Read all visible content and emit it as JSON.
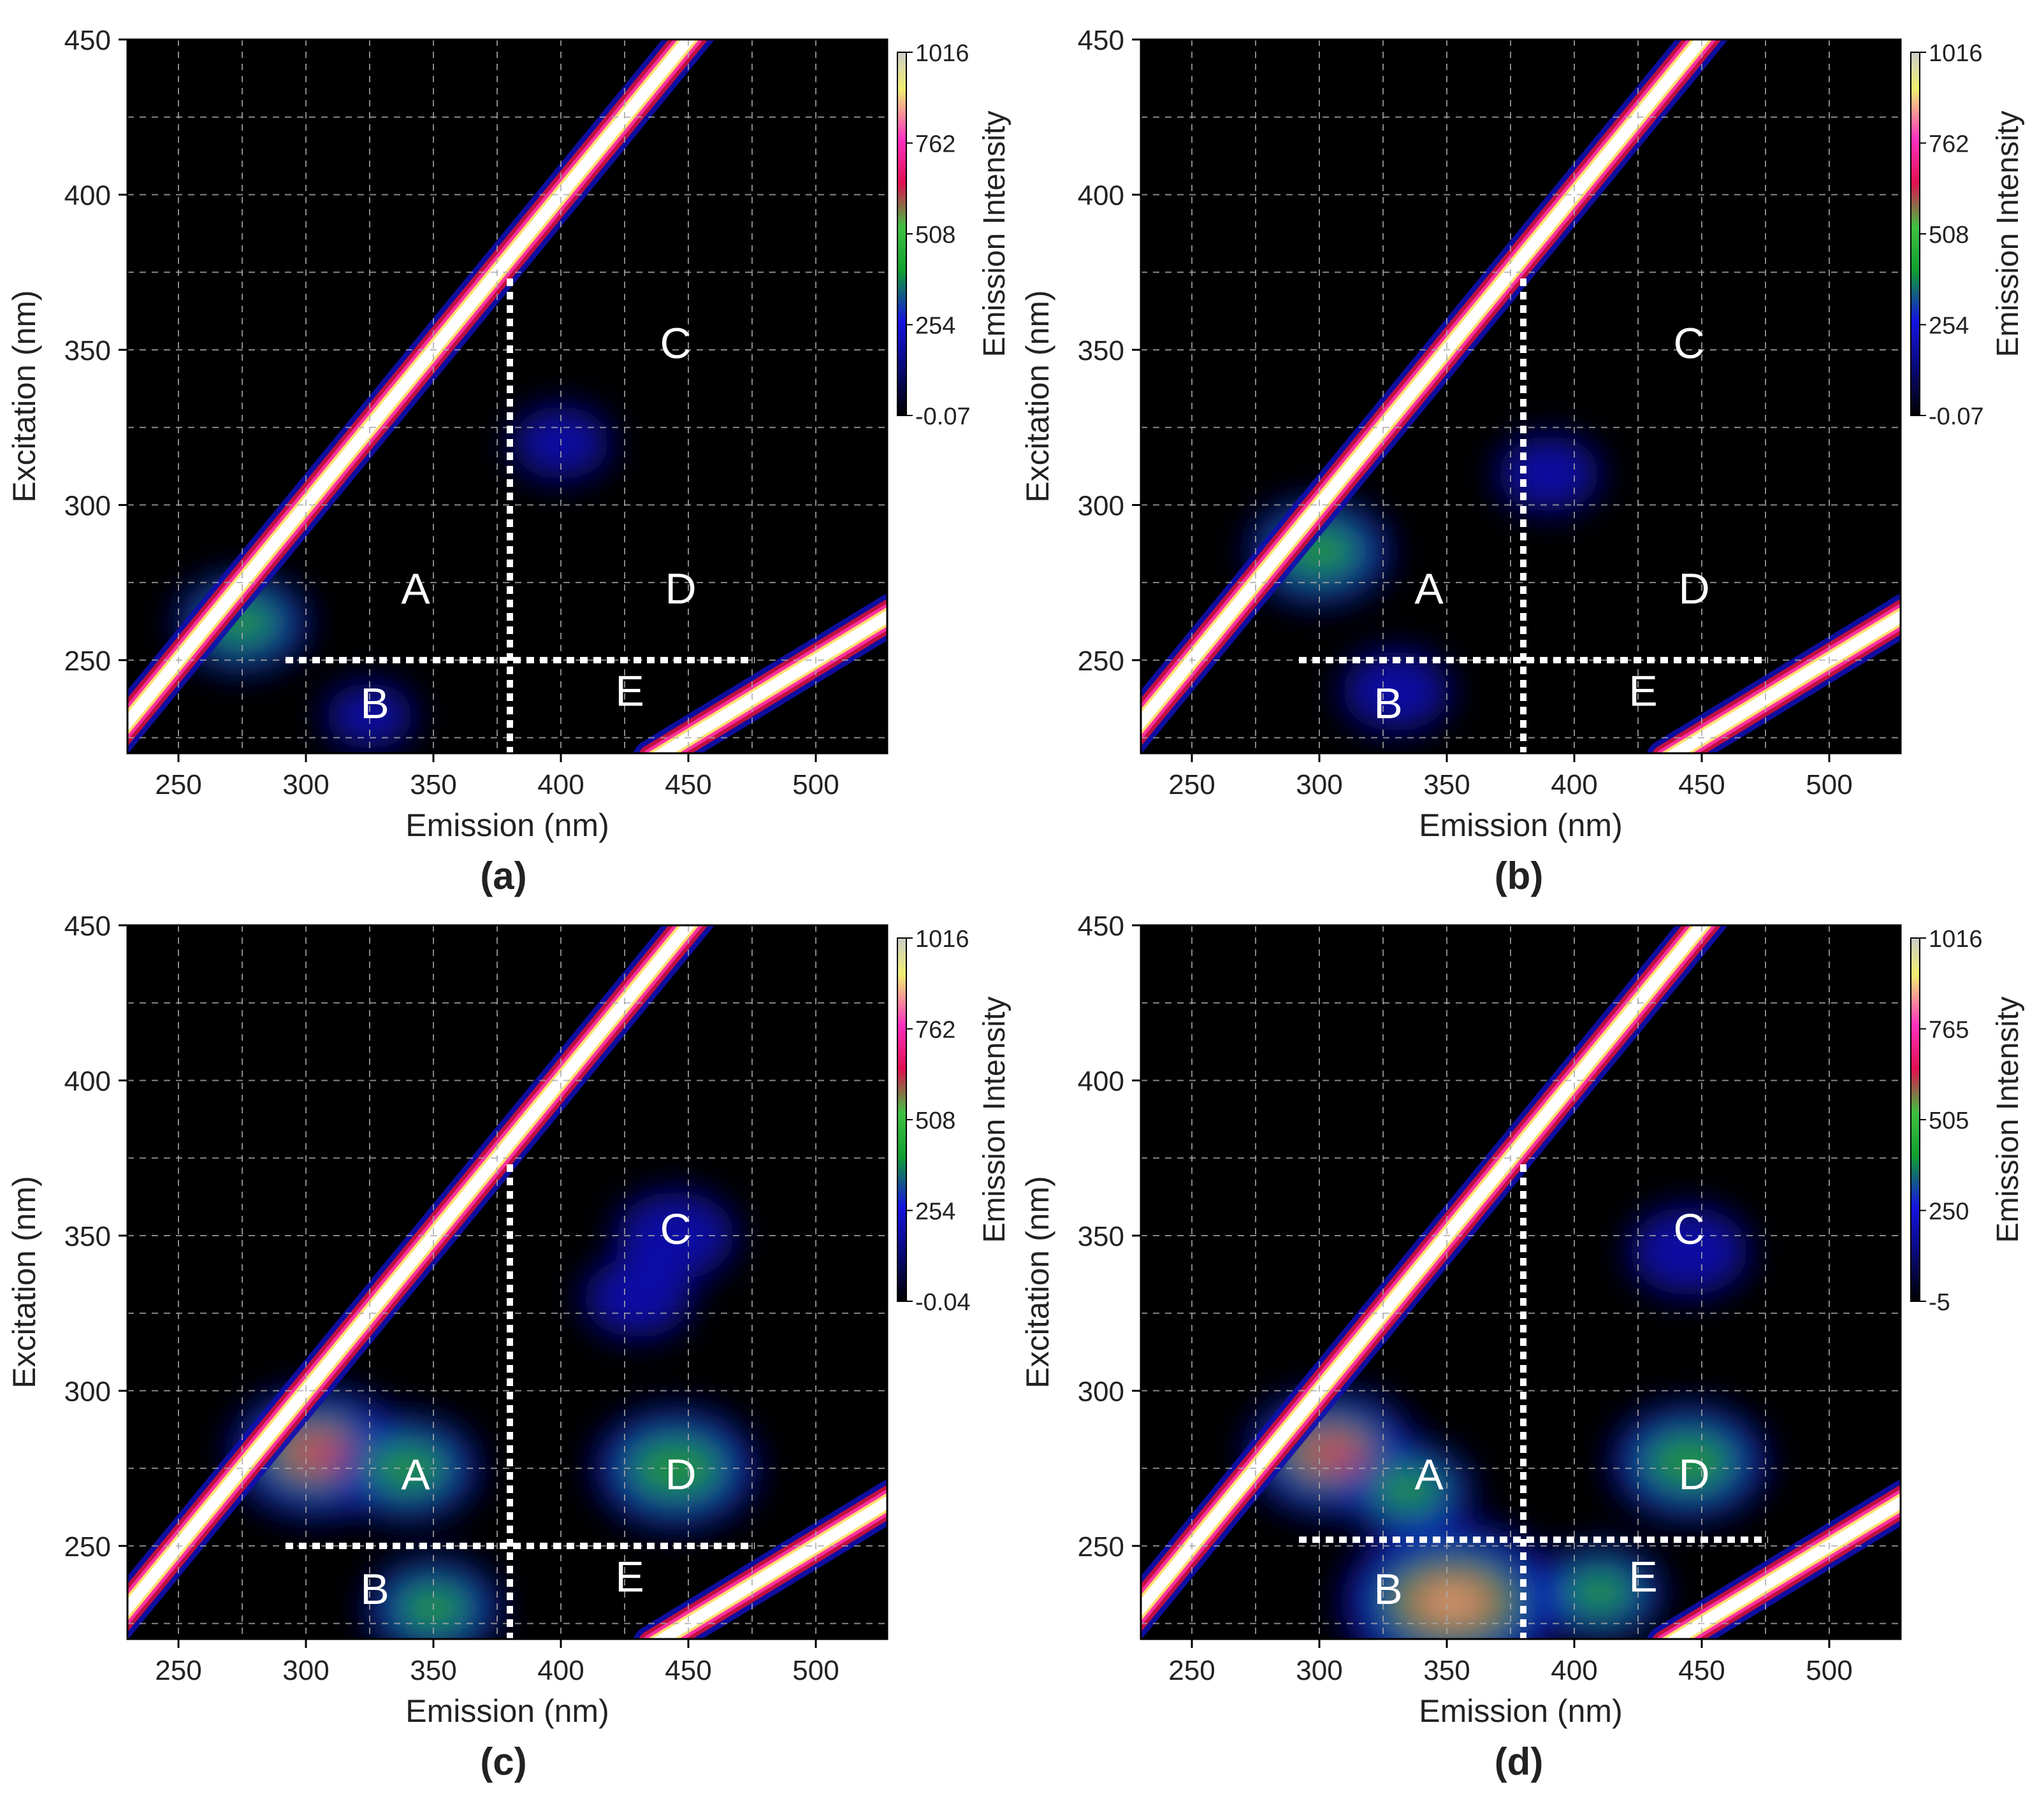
{
  "figure": {
    "type": "eem-contour-panels",
    "colors": {
      "background": "#ffffff",
      "plot_bg": "#000000",
      "grid": "#aaaaaa",
      "label_text": "#222222",
      "region_text": "#ffffff",
      "divider": "#ffffff",
      "colormap": [
        "#0a0a3a",
        "#1414d2",
        "#10a030",
        "#3ac03a",
        "#e01060",
        "#ff30b0",
        "#f0ff60",
        "#ffffff"
      ]
    }
  },
  "chart_data": [
    {
      "id": "a",
      "type": "heatmap",
      "caption": "(a)",
      "xlabel": "Emission (nm)",
      "ylabel": "Excitation (nm)",
      "xlim": [
        230,
        528
      ],
      "ylim": [
        220,
        450
      ],
      "xticks": [
        250,
        300,
        350,
        400,
        450,
        500
      ],
      "yticks": [
        250,
        300,
        350,
        400,
        450
      ],
      "xgrid": [
        250,
        275,
        300,
        325,
        350,
        375,
        400,
        425,
        450,
        475,
        500
      ],
      "ygrid": [
        225,
        250,
        275,
        300,
        325,
        350,
        375,
        400,
        425,
        450
      ],
      "colorbar": {
        "label": "Emission Intensity",
        "ticks": [
          "1016",
          "762",
          "508",
          "254",
          "-0.07"
        ],
        "min": -0.07,
        "max": 1016
      },
      "regions": [
        {
          "label": "A",
          "em": 343,
          "ex": 272
        },
        {
          "label": "B",
          "em": 327,
          "ex": 235
        },
        {
          "label": "C",
          "em": 445,
          "ex": 351
        },
        {
          "label": "D",
          "em": 447,
          "ex": 272
        },
        {
          "label": "E",
          "em": 427,
          "ex": 239
        }
      ],
      "dividers": {
        "em_line": 380,
        "em_line_top": 373,
        "ex_line": 250,
        "ex_line_from": 292,
        "ex_line_to": 476
      },
      "components": [
        {
          "label": "A",
          "em": 275,
          "ex": 262,
          "intensity": 0.38
        },
        {
          "label": "C-diffuse",
          "em": 400,
          "ex": 320,
          "intensity": 0.15
        },
        {
          "label": "B",
          "em": 325,
          "ex": 232,
          "intensity": 0.08
        }
      ]
    },
    {
      "id": "b",
      "type": "heatmap",
      "caption": "(b)",
      "xlabel": "Emission (nm)",
      "ylabel": "Excitation (nm)",
      "xlim": [
        230,
        528
      ],
      "ylim": [
        220,
        450
      ],
      "xticks": [
        250,
        300,
        350,
        400,
        450,
        500
      ],
      "yticks": [
        250,
        300,
        350,
        400,
        450
      ],
      "xgrid": [
        250,
        275,
        300,
        325,
        350,
        375,
        400,
        425,
        450,
        475,
        500
      ],
      "ygrid": [
        225,
        250,
        275,
        300,
        325,
        350,
        375,
        400,
        425,
        450
      ],
      "colorbar": {
        "label": "Emission Intensity",
        "ticks": [
          "1016",
          "762",
          "508",
          "254",
          "-0.07"
        ],
        "min": -0.07,
        "max": 1016
      },
      "regions": [
        {
          "label": "A",
          "em": 343,
          "ex": 272
        },
        {
          "label": "B",
          "em": 327,
          "ex": 235
        },
        {
          "label": "C",
          "em": 445,
          "ex": 351
        },
        {
          "label": "D",
          "em": 447,
          "ex": 272
        },
        {
          "label": "E",
          "em": 427,
          "ex": 239
        }
      ],
      "dividers": {
        "em_line": 380,
        "em_line_top": 373,
        "ex_line": 250,
        "ex_line_from": 292,
        "ex_line_to": 476
      },
      "components": [
        {
          "label": "A",
          "em": 300,
          "ex": 285,
          "intensity": 0.45
        },
        {
          "label": "C-diffuse",
          "em": 390,
          "ex": 310,
          "intensity": 0.18
        },
        {
          "label": "B",
          "em": 330,
          "ex": 240,
          "intensity": 0.22
        }
      ]
    },
    {
      "id": "c",
      "type": "heatmap",
      "caption": "(c)",
      "xlabel": "Emission (nm)",
      "ylabel": "Excitation (nm)",
      "xlim": [
        230,
        528
      ],
      "ylim": [
        220,
        450
      ],
      "xticks": [
        250,
        300,
        350,
        400,
        450,
        500
      ],
      "yticks": [
        250,
        300,
        350,
        400,
        450
      ],
      "xgrid": [
        250,
        275,
        300,
        325,
        350,
        375,
        400,
        425,
        450,
        475,
        500
      ],
      "ygrid": [
        225,
        250,
        275,
        300,
        325,
        350,
        375,
        400,
        425,
        450
      ],
      "colorbar": {
        "label": "Emission Intensity",
        "ticks": [
          "1016",
          "762",
          "508",
          "254",
          "-0.04"
        ],
        "min": -0.04,
        "max": 1016
      },
      "regions": [
        {
          "label": "A",
          "em": 343,
          "ex": 272
        },
        {
          "label": "B",
          "em": 327,
          "ex": 235
        },
        {
          "label": "C",
          "em": 445,
          "ex": 351
        },
        {
          "label": "D",
          "em": 447,
          "ex": 272
        },
        {
          "label": "E",
          "em": 427,
          "ex": 239
        }
      ],
      "dividers": {
        "em_line": 380,
        "em_line_top": 373,
        "ex_line": 250,
        "ex_line_from": 292,
        "ex_line_to": 476
      },
      "components": [
        {
          "label": "A-peak",
          "em": 305,
          "ex": 280,
          "intensity": 0.7
        },
        {
          "label": "A",
          "em": 340,
          "ex": 275,
          "intensity": 0.45
        },
        {
          "label": "D",
          "em": 445,
          "ex": 275,
          "intensity": 0.6
        },
        {
          "label": "C",
          "em": 445,
          "ex": 350,
          "intensity": 0.3
        },
        {
          "label": "C-diffuse",
          "em": 430,
          "ex": 330,
          "intensity": 0.22
        },
        {
          "label": "B",
          "em": 350,
          "ex": 230,
          "intensity": 0.4
        }
      ]
    },
    {
      "id": "d",
      "type": "heatmap",
      "caption": "(d)",
      "xlabel": "Emission (nm)",
      "ylabel": "Excitation (nm)",
      "xlim": [
        230,
        528
      ],
      "ylim": [
        220,
        450
      ],
      "xticks": [
        250,
        300,
        350,
        400,
        450,
        500
      ],
      "yticks": [
        250,
        300,
        350,
        400,
        450
      ],
      "xgrid": [
        250,
        275,
        300,
        325,
        350,
        375,
        400,
        425,
        450,
        475,
        500
      ],
      "ygrid": [
        225,
        250,
        275,
        300,
        325,
        350,
        375,
        400,
        425,
        450
      ],
      "colorbar": {
        "label": "Emission Intensity",
        "ticks": [
          "1016",
          "765",
          "505",
          "250",
          "-5"
        ],
        "min": -5,
        "max": 1016
      },
      "regions": [
        {
          "label": "A",
          "em": 343,
          "ex": 272
        },
        {
          "label": "B",
          "em": 327,
          "ex": 235
        },
        {
          "label": "C",
          "em": 445,
          "ex": 351
        },
        {
          "label": "D",
          "em": 447,
          "ex": 272
        },
        {
          "label": "E",
          "em": 427,
          "ex": 239
        }
      ],
      "dividers": {
        "em_line": 380,
        "em_line_top": 373,
        "ex_line": 252,
        "ex_line_from": 292,
        "ex_line_to": 476
      },
      "components": [
        {
          "label": "A-peak",
          "em": 305,
          "ex": 280,
          "intensity": 0.65
        },
        {
          "label": "A",
          "em": 335,
          "ex": 268,
          "intensity": 0.35
        },
        {
          "label": "D",
          "em": 445,
          "ex": 277,
          "intensity": 0.55
        },
        {
          "label": "C",
          "em": 445,
          "ex": 345,
          "intensity": 0.3
        },
        {
          "label": "B",
          "em": 352,
          "ex": 232,
          "intensity": 1.0
        },
        {
          "label": "E",
          "em": 410,
          "ex": 235,
          "intensity": 0.35
        }
      ]
    }
  ]
}
